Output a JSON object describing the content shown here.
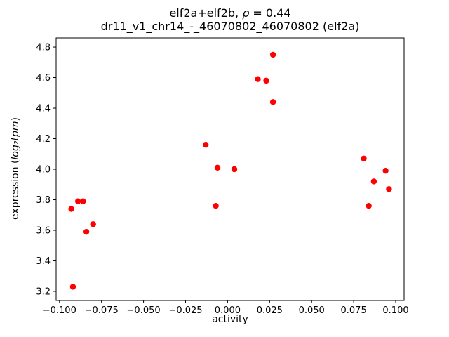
{
  "figure": {
    "title_prefix": "elf2a+elf2b, ",
    "rho_symbol": "ρ",
    "rho_value": " = 0.44",
    "title_line2": "dr11_v1_chr14_-_46070802_46070802 (elf2a)",
    "xlabel": "activity",
    "ylabel_prefix": "expression (",
    "ylabel_math": "log₂tpm",
    "ylabel_suffix": ")"
  },
  "chart_data": {
    "type": "scatter",
    "title": "elf2a+elf2b, ρ = 0.44\ndr11_v1_chr14_-_46070802_46070802 (elf2a)",
    "xlabel": "activity",
    "ylabel": "expression (log2tpm)",
    "legend": "none",
    "grid": false,
    "marker_color": "#ff0000",
    "xlim": [
      -0.102,
      0.105
    ],
    "ylim": [
      3.14,
      4.86
    ],
    "xticks": [
      -0.1,
      -0.075,
      -0.05,
      -0.025,
      0.0,
      0.025,
      0.05,
      0.075,
      0.1
    ],
    "xtick_labels": [
      "−0.100",
      "−0.075",
      "−0.050",
      "−0.025",
      "0.000",
      "0.025",
      "0.050",
      "0.075",
      "0.100"
    ],
    "yticks": [
      3.2,
      3.4,
      3.6,
      3.8,
      4.0,
      4.2,
      4.4,
      4.6,
      4.8
    ],
    "ytick_labels": [
      "3.2",
      "3.4",
      "3.6",
      "3.8",
      "4.0",
      "4.2",
      "4.4",
      "4.6",
      "4.8"
    ],
    "points": [
      {
        "x": -0.092,
        "y": 3.23
      },
      {
        "x": -0.093,
        "y": 3.74
      },
      {
        "x": -0.089,
        "y": 3.79
      },
      {
        "x": -0.086,
        "y": 3.79
      },
      {
        "x": -0.084,
        "y": 3.59
      },
      {
        "x": -0.08,
        "y": 3.64
      },
      {
        "x": -0.013,
        "y": 4.16
      },
      {
        "x": -0.007,
        "y": 3.76
      },
      {
        "x": -0.006,
        "y": 4.01
      },
      {
        "x": 0.004,
        "y": 4.0
      },
      {
        "x": 0.018,
        "y": 4.59
      },
      {
        "x": 0.023,
        "y": 4.58
      },
      {
        "x": 0.027,
        "y": 4.75
      },
      {
        "x": 0.027,
        "y": 4.44
      },
      {
        "x": 0.081,
        "y": 4.07
      },
      {
        "x": 0.084,
        "y": 3.76
      },
      {
        "x": 0.087,
        "y": 3.92
      },
      {
        "x": 0.094,
        "y": 3.99
      },
      {
        "x": 0.096,
        "y": 3.87
      }
    ]
  }
}
